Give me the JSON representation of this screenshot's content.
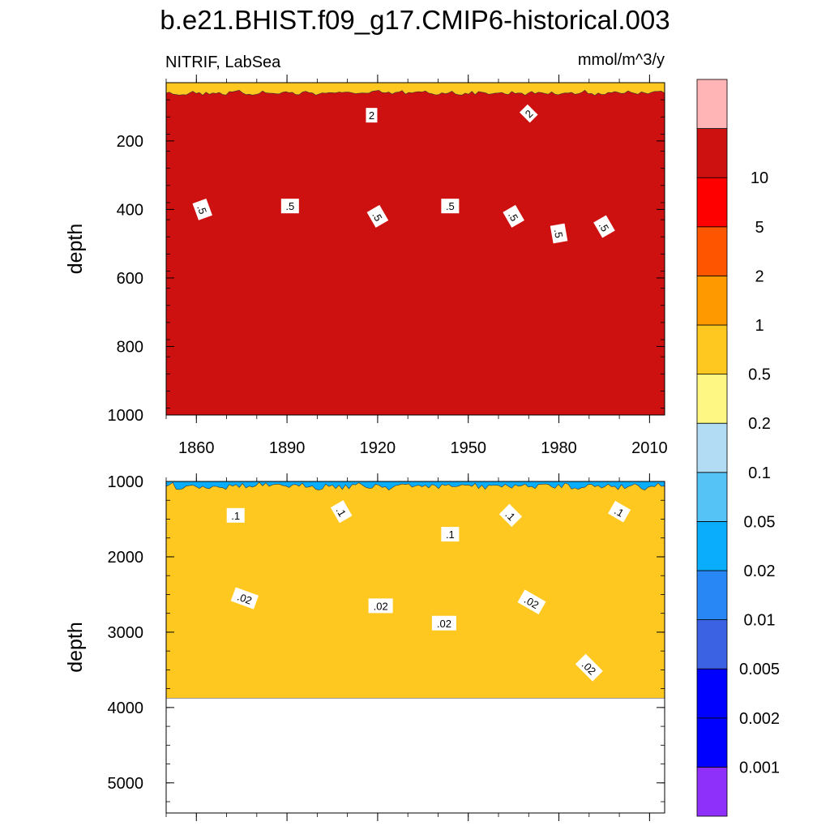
{
  "chart_data": {
    "type": "contour",
    "title": "b.e21.BHIST.f09_g17.CMIP6-historical.003",
    "variable_label": "NITRIF, LabSea",
    "units_label": "mmol/m^3/y",
    "xlabel": "",
    "xlim": [
      1850,
      2015
    ],
    "x_ticks": [
      1860,
      1890,
      1920,
      1950,
      1980,
      2010
    ],
    "x_tick_labels": [
      "1860",
      "1890",
      "1920",
      "1950",
      "1980",
      "2010"
    ],
    "panels": [
      {
        "name": "upper",
        "ylabel": "depth",
        "ylim": [
          0,
          1000
        ],
        "y_ticks": [
          200,
          400,
          600,
          800,
          1000
        ],
        "y_tick_labels": [
          "200",
          "400",
          "600",
          "800",
          "1000"
        ],
        "y_top": 30,
        "layers": [
          {
            "color": "#fec820",
            "base": 1000,
            "noise": 0
          },
          {
            "color": "#fe9a00",
            "base": 420,
            "noise": 38
          },
          {
            "color": "#fe5500",
            "base": 200,
            "noise": 14
          },
          {
            "color": "#ff0000",
            "base": 120,
            "noise": 6
          },
          {
            "color": "#cd1110",
            "base": 60,
            "noise": 6
          }
        ],
        "contour_labels": [
          {
            "text": "2",
            "year": 1918,
            "depth": 125,
            "angle": 0
          },
          {
            "text": "2",
            "year": 1970,
            "depth": 120,
            "angle": -45
          },
          {
            "text": ".5",
            "year": 1862,
            "depth": 400,
            "angle": 70
          },
          {
            "text": ".5",
            "year": 1891,
            "depth": 390,
            "angle": 0
          },
          {
            "text": ".5",
            "year": 1920,
            "depth": 420,
            "angle": 60
          },
          {
            "text": ".5",
            "year": 1944,
            "depth": 390,
            "angle": 0
          },
          {
            "text": ".5",
            "year": 1965,
            "depth": 420,
            "angle": 60
          },
          {
            "text": ".5",
            "year": 1980,
            "depth": 470,
            "angle": 80
          },
          {
            "text": ".5",
            "year": 1995,
            "depth": 450,
            "angle": 60
          }
        ]
      },
      {
        "name": "lower",
        "ylabel": "depth",
        "ylim": [
          1000,
          5400
        ],
        "y_ticks": [
          1000,
          2000,
          3000,
          4000,
          5000
        ],
        "y_tick_labels": [
          "1000",
          "2000",
          "3000",
          "4000",
          "5000"
        ],
        "data_bottom": 3875,
        "layers": [
          {
            "color": "#0aacfc",
            "base": 3875,
            "noise": 0
          },
          {
            "color": "#55c3f5",
            "base": 2450,
            "noise": 90
          },
          {
            "color": "#b2dcf3",
            "base": 2020,
            "noise": 90
          },
          {
            "color": "#fff784",
            "base": 1700,
            "noise": 90
          },
          {
            "color": "#fec820",
            "base": 1060,
            "noise": 40
          }
        ],
        "contour_labels": [
          {
            "text": ".1",
            "year": 1873,
            "depth": 1450,
            "angle": 0
          },
          {
            "text": ".1",
            "year": 1908,
            "depth": 1400,
            "angle": 60
          },
          {
            "text": ".1",
            "year": 1944,
            "depth": 1700,
            "angle": 0
          },
          {
            "text": ".1",
            "year": 1964,
            "depth": 1450,
            "angle": 45
          },
          {
            "text": ".1",
            "year": 2000,
            "depth": 1400,
            "angle": 30
          },
          {
            "text": ".02",
            "year": 1876,
            "depth": 2550,
            "angle": 20
          },
          {
            "text": ".02",
            "year": 1921,
            "depth": 2650,
            "angle": 0
          },
          {
            "text": ".02",
            "year": 1942,
            "depth": 2880,
            "angle": 0
          },
          {
            "text": ".02",
            "year": 1971,
            "depth": 2600,
            "angle": 30
          },
          {
            "text": ".02",
            "year": 1990,
            "depth": 3470,
            "angle": 45
          }
        ]
      }
    ],
    "colorbar": {
      "colors": [
        "#8f30fa",
        "#0000fe",
        "#0000fe",
        "#3c62e4",
        "#2886f5",
        "#0aacfc",
        "#55c3f5",
        "#b2dcf3",
        "#fff784",
        "#fec820",
        "#fe9a00",
        "#fe5500",
        "#ff0000",
        "#cd1110",
        "#ffb5b6"
      ],
      "levels": [
        "0.001",
        "0.002",
        "0.005",
        "0.01",
        "0.02",
        "0.05",
        "0.1",
        "0.2",
        "0.5",
        "1",
        "2",
        "5",
        "10"
      ]
    }
  }
}
